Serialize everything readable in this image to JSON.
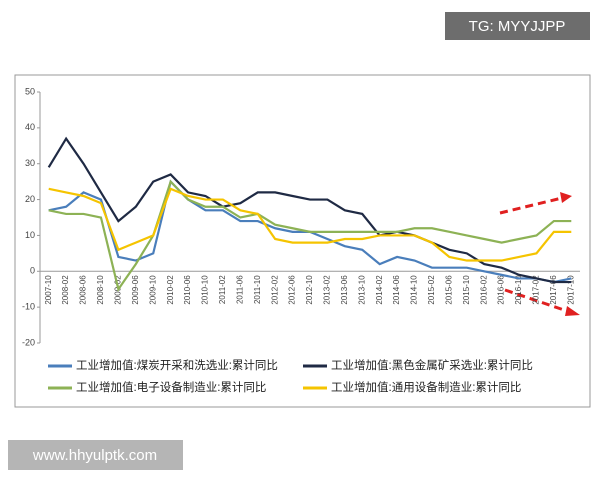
{
  "chart_data": {
    "type": "line",
    "categories": [
      "2007-10",
      "2008-02",
      "2008-06",
      "2008-10",
      "2009-02",
      "2009-06",
      "2009-10",
      "2010-02",
      "2010-06",
      "2010-10",
      "2011-02",
      "2011-06",
      "2011-10",
      "2012-02",
      "2012-06",
      "2012-10",
      "2013-02",
      "2013-06",
      "2013-10",
      "2014-02",
      "2014-06",
      "2014-10",
      "2015-02",
      "2015-06",
      "2015-10",
      "2016-02",
      "2016-06",
      "2016-10",
      "2017-02",
      "2017-06",
      "2017-10"
    ],
    "series": [
      {
        "name": "工业增加值:煤炭开采和洗选业:累计同比",
        "color": "#4a7ebb",
        "values": [
          17,
          18,
          22,
          20,
          4,
          3,
          5,
          25,
          20,
          17,
          17,
          14,
          14,
          12,
          11,
          11,
          9,
          7,
          6,
          2,
          4,
          3,
          1,
          1,
          1,
          0,
          -1,
          -2,
          -2,
          -3,
          -2
        ]
      },
      {
        "name": "工业增加值:黑色金属矿采选业:累计同比",
        "color": "#1f2a44",
        "values": [
          29,
          37,
          30,
          22,
          14,
          18,
          25,
          27,
          22,
          21,
          18,
          19,
          22,
          22,
          21,
          20,
          20,
          17,
          16,
          10,
          11,
          10,
          8,
          6,
          5,
          2,
          1,
          -1,
          -2,
          -3,
          -3
        ]
      },
      {
        "name": "工业增加值:电子设备制造业:累计同比",
        "color": "#8db255",
        "values": [
          17,
          16,
          16,
          15,
          -5,
          2,
          10,
          25,
          20,
          18,
          18,
          15,
          16,
          13,
          12,
          11,
          11,
          11,
          11,
          11,
          11,
          12,
          12,
          11,
          10,
          9,
          8,
          9,
          10,
          14,
          14
        ]
      },
      {
        "name": "工业增加值:通用设备制造业:累计同比",
        "color": "#f5c400",
        "values": [
          23,
          22,
          21,
          19,
          6,
          8,
          10,
          23,
          21,
          20,
          20,
          17,
          16,
          9,
          8,
          8,
          8,
          9,
          9,
          10,
          10,
          10,
          8,
          4,
          3,
          3,
          3,
          4,
          5,
          11,
          11
        ]
      }
    ],
    "ylim": [
      -20,
      50
    ],
    "yticks": [
      -20,
      -10,
      0,
      10,
      20,
      30,
      40,
      50
    ]
  },
  "watermarks": [
    "TG: MYYJJPP",
    "www.hhyulptk.com"
  ]
}
